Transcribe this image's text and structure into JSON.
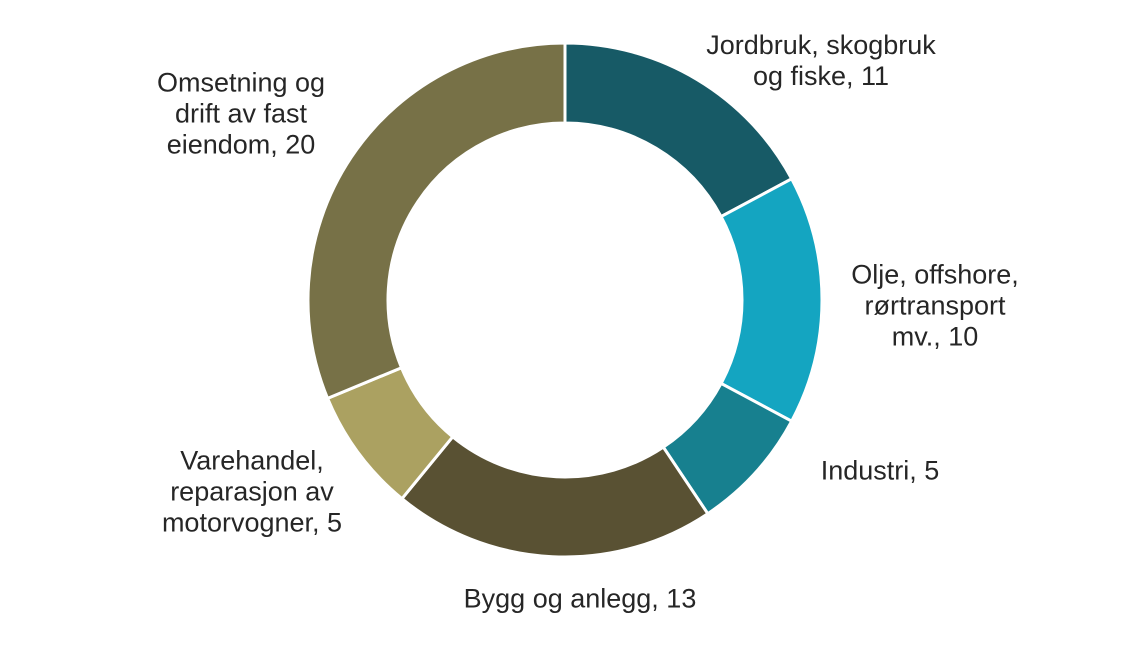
{
  "canvas": {
    "background": "#FFFFFF",
    "text_color": "#262626",
    "separator_color": "#FFFFFF"
  },
  "chart_data": {
    "type": "pie",
    "subtype": "donut",
    "title": "",
    "categories": [
      "Jordbruk, skogbruk og fiske",
      "Olje, offshore, rørtransport mv.",
      "Industri",
      "Bygg og anlegg",
      "Varehandel, reparasjon av motorvogner",
      "Omsetning og drift av fast eiendom"
    ],
    "values": [
      11,
      10,
      5,
      13,
      5,
      20
    ],
    "colors": [
      "#175A66",
      "#14A5C1",
      "#17808F",
      "#595133",
      "#ABA161",
      "#777147"
    ],
    "start_angle_deg": 0,
    "direction": "clockwise",
    "inner_radius_ratio": 0.69,
    "legend_position": "outside-data-labels",
    "label_texts": [
      "Jordbruk, skogbruk\nog fiske, 11",
      "Olje, offshore,\nrørtransport\nmv., 10",
      "Industri, 5",
      "Bygg og anlegg, 13",
      "Varehandel,\nreparasjon av\nmotorvogner, 5",
      "Omsetning og\ndrift av fast\neiendom, 20"
    ]
  }
}
